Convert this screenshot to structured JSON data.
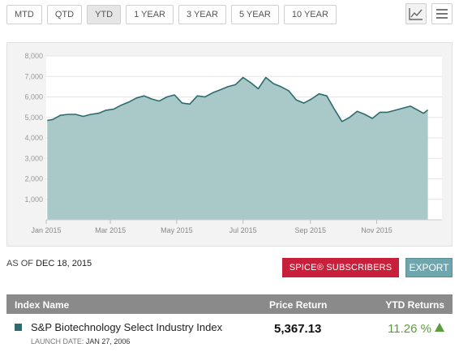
{
  "range_buttons": [
    {
      "label": "MTD",
      "active": false
    },
    {
      "label": "QTD",
      "active": false
    },
    {
      "label": "YTD",
      "active": true
    },
    {
      "label": "1 YEAR",
      "active": false
    },
    {
      "label": "3 YEAR",
      "active": false
    },
    {
      "label": "5 YEAR",
      "active": false
    },
    {
      "label": "10 YEAR",
      "active": false
    }
  ],
  "view_toggles": [
    {
      "name": "line-chart-icon",
      "active": true
    },
    {
      "name": "menu-icon",
      "active": false
    }
  ],
  "colors": {
    "area_fill": "#a9c8c8",
    "line": "#2e6b6e",
    "spice": "#c8203b",
    "export": "#6fa5ac",
    "positive": "#5a9d3b"
  },
  "chart_data": {
    "type": "area",
    "title": "",
    "xlabel": "",
    "ylabel": "",
    "ylim": [
      0,
      8000
    ],
    "yticks": [
      "1,000",
      "2,000",
      "3,000",
      "4,000",
      "5,000",
      "6,000",
      "7,000",
      "8,000"
    ],
    "xticks": [
      "Jan 2015",
      "Mar 2015",
      "May 2015",
      "Jul 2015",
      "Sep 2015",
      "Nov 2015"
    ],
    "grid": true,
    "series": [
      {
        "x": [
          "2015-01-02",
          "2015-01-07",
          "2015-01-14",
          "2015-01-21",
          "2015-01-28",
          "2015-02-04",
          "2015-02-11",
          "2015-02-18",
          "2015-02-25",
          "2015-03-04",
          "2015-03-11",
          "2015-03-18",
          "2015-03-25",
          "2015-04-01",
          "2015-04-08",
          "2015-04-15",
          "2015-04-22",
          "2015-04-29",
          "2015-05-06",
          "2015-05-13",
          "2015-05-20",
          "2015-05-27",
          "2015-06-03",
          "2015-06-10",
          "2015-06-17",
          "2015-06-24",
          "2015-07-01",
          "2015-07-08",
          "2015-07-15",
          "2015-07-22",
          "2015-07-29",
          "2015-08-05",
          "2015-08-12",
          "2015-08-19",
          "2015-08-26",
          "2015-09-02",
          "2015-09-09",
          "2015-09-16",
          "2015-09-23",
          "2015-09-30",
          "2015-10-07",
          "2015-10-14",
          "2015-10-21",
          "2015-10-28",
          "2015-11-04",
          "2015-11-11",
          "2015-11-18",
          "2015-11-25",
          "2015-12-02",
          "2015-12-09",
          "2015-12-14",
          "2015-12-18"
        ],
        "values": [
          4850,
          4900,
          5100,
          5150,
          5150,
          5050,
          5150,
          5200,
          5350,
          5400,
          5600,
          5750,
          5950,
          6050,
          5900,
          5800,
          6000,
          6100,
          5700,
          5650,
          6050,
          6000,
          6200,
          6350,
          6500,
          6600,
          6950,
          6700,
          6400,
          6950,
          6650,
          6500,
          6300,
          5850,
          5700,
          5900,
          6150,
          6050,
          5400,
          4800,
          5000,
          5300,
          5150,
          4950,
          5250,
          5250,
          5350,
          5450,
          5550,
          5350,
          5200,
          5367
        ]
      }
    ]
  },
  "as_of": {
    "label": "AS OF",
    "date": "DEC 18, 2015"
  },
  "buttons": {
    "spice": "SPICE® SUBSCRIBERS",
    "export": "EXPORT"
  },
  "table": {
    "headers": {
      "name": "Index Name",
      "price": "Price Return",
      "ytd": "YTD Returns"
    },
    "rows": [
      {
        "name": "S&P Biotechnology Select Industry Index",
        "launch_label": "LAUNCH DATE:",
        "launch_date": "JAN 27, 2006",
        "price": "5,367.13",
        "ytd": "11.26 %"
      }
    ]
  }
}
